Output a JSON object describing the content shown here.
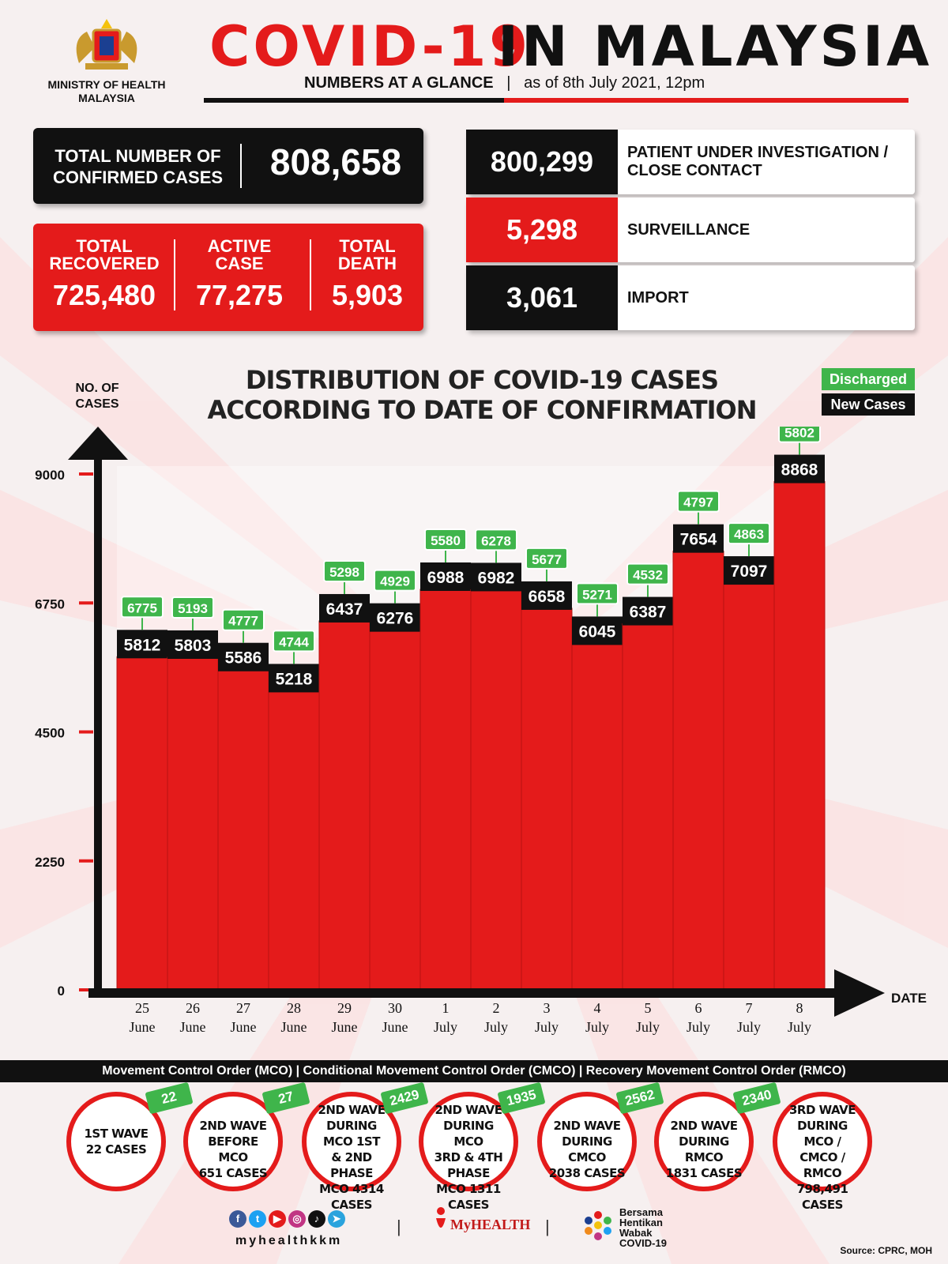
{
  "header": {
    "ministry_line1": "MINISTRY OF HEALTH",
    "ministry_line2": "MALAYSIA",
    "title_part1": "COVID-19",
    "title_part2": "IN MALAYSIA",
    "subtitle": "NUMBERS AT A GLANCE",
    "separator": "|",
    "as_of": "as of 8th July 2021, 12pm"
  },
  "summary": {
    "confirmed_label_line1": "TOTAL NUMBER OF",
    "confirmed_label_line2": "CONFIRMED CASES",
    "confirmed_value": "808,658",
    "recovered_label_line1": "TOTAL",
    "recovered_label_line2": "RECOVERED",
    "recovered_value": "725,480",
    "active_label_line1": "ACTIVE",
    "active_label_line2": "CASE",
    "active_value": "77,275",
    "death_label_line1": "TOTAL",
    "death_label_line2": "DEATH",
    "death_value": "5,903"
  },
  "categories": [
    {
      "value": "800,299",
      "label_line1": "PATIENT UNDER INVESTIGATION /",
      "label_line2": "CLOSE CONTACT",
      "color": "#111111"
    },
    {
      "value": "5,298",
      "label_line1": "SURVEILLANCE",
      "label_line2": "",
      "color": "#e41b1b"
    },
    {
      "value": "3,061",
      "label_line1": "IMPORT",
      "label_line2": "",
      "color": "#111111"
    }
  ],
  "chart_data": {
    "type": "bar",
    "title_line1": "DISTRIBUTION OF COVID-19 CASES",
    "title_line2": "ACCORDING TO DATE OF CONFIRMATION",
    "ylabel_line1": "NO. OF",
    "ylabel_line2": "CASES",
    "xlabel": "DATE",
    "ylim": [
      0,
      9000
    ],
    "yticks": [
      0,
      2250,
      4500,
      6750,
      9000
    ],
    "categories": [
      {
        "day": "25",
        "month": "June"
      },
      {
        "day": "26",
        "month": "June"
      },
      {
        "day": "27",
        "month": "June"
      },
      {
        "day": "28",
        "month": "June"
      },
      {
        "day": "29",
        "month": "June"
      },
      {
        "day": "30",
        "month": "June"
      },
      {
        "day": "1",
        "month": "July"
      },
      {
        "day": "2",
        "month": "July"
      },
      {
        "day": "3",
        "month": "July"
      },
      {
        "day": "4",
        "month": "July"
      },
      {
        "day": "5",
        "month": "July"
      },
      {
        "day": "6",
        "month": "July"
      },
      {
        "day": "7",
        "month": "July"
      },
      {
        "day": "8",
        "month": "July"
      }
    ],
    "series": [
      {
        "name": "New Cases",
        "color": "#e41b1b",
        "values": [
          5812,
          5803,
          5586,
          5218,
          6437,
          6276,
          6988,
          6982,
          6658,
          6045,
          6387,
          7654,
          7097,
          8868
        ]
      },
      {
        "name": "Discharged",
        "color": "#3fb54b",
        "values": [
          6775,
          5193,
          4777,
          4744,
          5298,
          4929,
          5580,
          6278,
          5677,
          5271,
          4532,
          4797,
          4863,
          5802
        ]
      }
    ],
    "legend": [
      "Discharged",
      "New Cases"
    ],
    "legend_position": "top-right"
  },
  "mco_legend": "Movement Control Order (MCO) | Conditional Movement Control Order (CMCO) | Recovery Movement Control Order (RMCO)",
  "waves": [
    {
      "lines": [
        "1ST WAVE",
        "22 CASES"
      ],
      "badge": "22"
    },
    {
      "lines": [
        "2ND WAVE",
        "BEFORE MCO",
        "651 CASES"
      ],
      "badge": "27"
    },
    {
      "lines": [
        "2ND WAVE",
        "DURING MCO 1ST",
        "& 2ND PHASE",
        "MCO 4314",
        "CASES"
      ],
      "badge": "2429"
    },
    {
      "lines": [
        "2ND WAVE",
        "DURING MCO",
        "3RD & 4TH PHASE",
        "MCO 1311",
        "CASES"
      ],
      "badge": "1935"
    },
    {
      "lines": [
        "2ND WAVE",
        "DURING CMCO",
        "2038 CASES"
      ],
      "badge": "2562"
    },
    {
      "lines": [
        "2ND WAVE",
        "DURING RMCO",
        "1831 CASES"
      ],
      "badge": "2340"
    },
    {
      "lines": [
        "3RD WAVE",
        "DURING MCO /",
        "CMCO / RMCO",
        "798,491",
        "CASES"
      ],
      "badge": ""
    }
  ],
  "footer": {
    "handle": "myhealthkkm",
    "myhealth": "MyHEALTH",
    "bersama_line1": "Bersama",
    "bersama_line2": "Hentikan",
    "bersama_line3": "Wabak",
    "bersama_line4": "COVID-19",
    "source": "Source: CPRC, MOH",
    "divider": "|"
  },
  "icons": [
    "facebook-icon",
    "twitter-icon",
    "youtube-icon",
    "instagram-icon",
    "tiktok-icon",
    "telegram-icon"
  ]
}
